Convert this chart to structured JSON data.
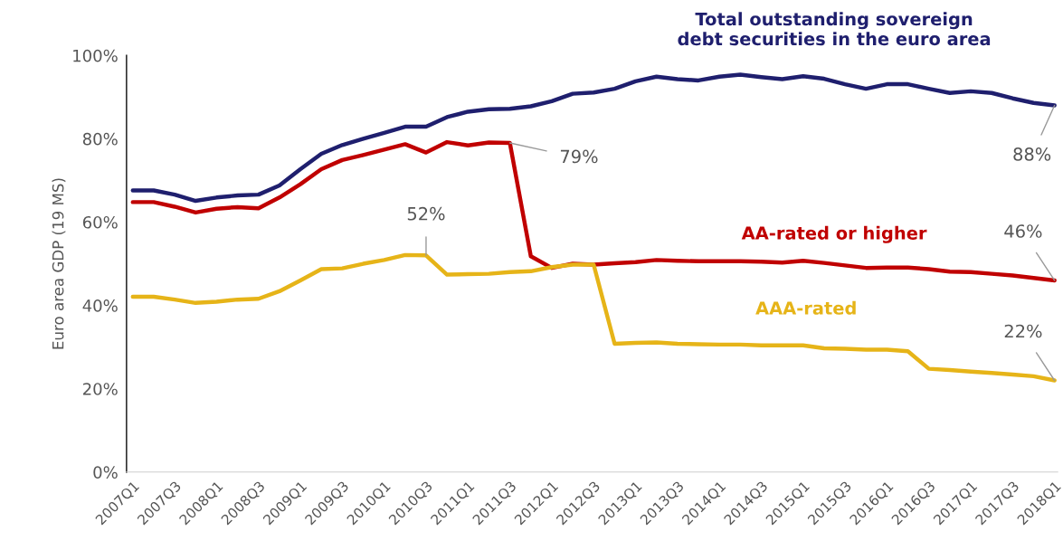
{
  "chart_data": {
    "type": "line",
    "ylabel": "Euro area GDP (19 MS)",
    "categories": [
      "2007Q1",
      null,
      "2007Q3",
      null,
      "2008Q1",
      null,
      "2008Q3",
      null,
      "2009Q1",
      null,
      "2009Q3",
      null,
      "2010Q1",
      null,
      "2010Q3",
      null,
      "2011Q1",
      null,
      "2011Q3",
      null,
      "2012Q1",
      null,
      "2012Q3",
      null,
      "2013Q1",
      null,
      "2013Q3",
      null,
      "2014Q1",
      null,
      "2014Q3",
      null,
      "2015Q1",
      null,
      "2015Q3",
      null,
      "2016Q1",
      null,
      "2016Q3",
      null,
      "2017Q1",
      null,
      "2017Q3",
      null,
      "2018Q1"
    ],
    "series": [
      {
        "name": "Total outstanding sovereign\ndebt securities in the euro area",
        "color": "#1f1f6e",
        "values": [
          67.6,
          67.6,
          66.6,
          65.1,
          65.9,
          66.4,
          66.6,
          68.8,
          72.7,
          76.4,
          78.5,
          80,
          81.4,
          82.9,
          82.9,
          85.2,
          86.5,
          87.1,
          87.2,
          87.8,
          89,
          90.8,
          91.1,
          92,
          93.8,
          94.9,
          94.3,
          94,
          94.9,
          95.4,
          94.8,
          94.3,
          95,
          94.4,
          93.1,
          92,
          93.1,
          93.1,
          92,
          91,
          91.4,
          91,
          89.7,
          88.6,
          88
        ]
      },
      {
        "name": "AA-rated or higher",
        "color": "#c00000",
        "values": [
          64.8,
          64.8,
          63.7,
          62.3,
          63.2,
          63.6,
          63.3,
          65.9,
          69.1,
          72.7,
          74.9,
          76.1,
          77.4,
          78.7,
          76.7,
          79.2,
          78.4,
          79.1,
          79,
          51.8,
          49,
          50,
          49.8,
          50.1,
          50.4,
          50.9,
          50.7,
          50.6,
          50.6,
          50.6,
          50.5,
          50.3,
          50.7,
          50.2,
          49.6,
          49,
          49.1,
          49.1,
          48.7,
          48.1,
          48,
          47.6,
          47.2,
          46.6,
          46
        ]
      },
      {
        "name": "AAA-rated",
        "color": "#e6b418",
        "values": [
          42.1,
          42.1,
          41.4,
          40.6,
          40.9,
          41.4,
          41.6,
          43.4,
          46,
          48.7,
          48.9,
          50,
          50.9,
          52.1,
          52,
          47.4,
          47.5,
          47.6,
          48,
          48.2,
          49.2,
          49.8,
          49.8,
          30.8,
          31,
          31.1,
          30.8,
          30.7,
          30.6,
          30.6,
          30.4,
          30.4,
          30.4,
          29.7,
          29.6,
          29.4,
          29.4,
          29,
          24.8,
          24.5,
          24.1,
          23.8,
          23.4,
          23,
          22
        ]
      }
    ],
    "ylim": [
      0,
      100
    ],
    "yticks": [
      {
        "value": 0,
        "label": "0%"
      },
      {
        "value": 20,
        "label": "20%"
      },
      {
        "value": 40,
        "label": "40%"
      },
      {
        "value": 60,
        "label": "60%"
      },
      {
        "value": 80,
        "label": "80%"
      },
      {
        "value": 100,
        "label": "100%"
      }
    ],
    "annotations": [
      {
        "text": "79%",
        "x": "2011Q3",
        "y": 79
      },
      {
        "text": "52%",
        "x": "2010Q3",
        "y": 52
      },
      {
        "text": "88%",
        "x": "2018Q1",
        "y": 88
      },
      {
        "text": "46%",
        "x": "2018Q1",
        "y": 46
      },
      {
        "text": "22%",
        "x": "2018Q1",
        "y": 22
      }
    ],
    "grid": false,
    "legend": false,
    "marker": "none",
    "line_style": "solid"
  }
}
